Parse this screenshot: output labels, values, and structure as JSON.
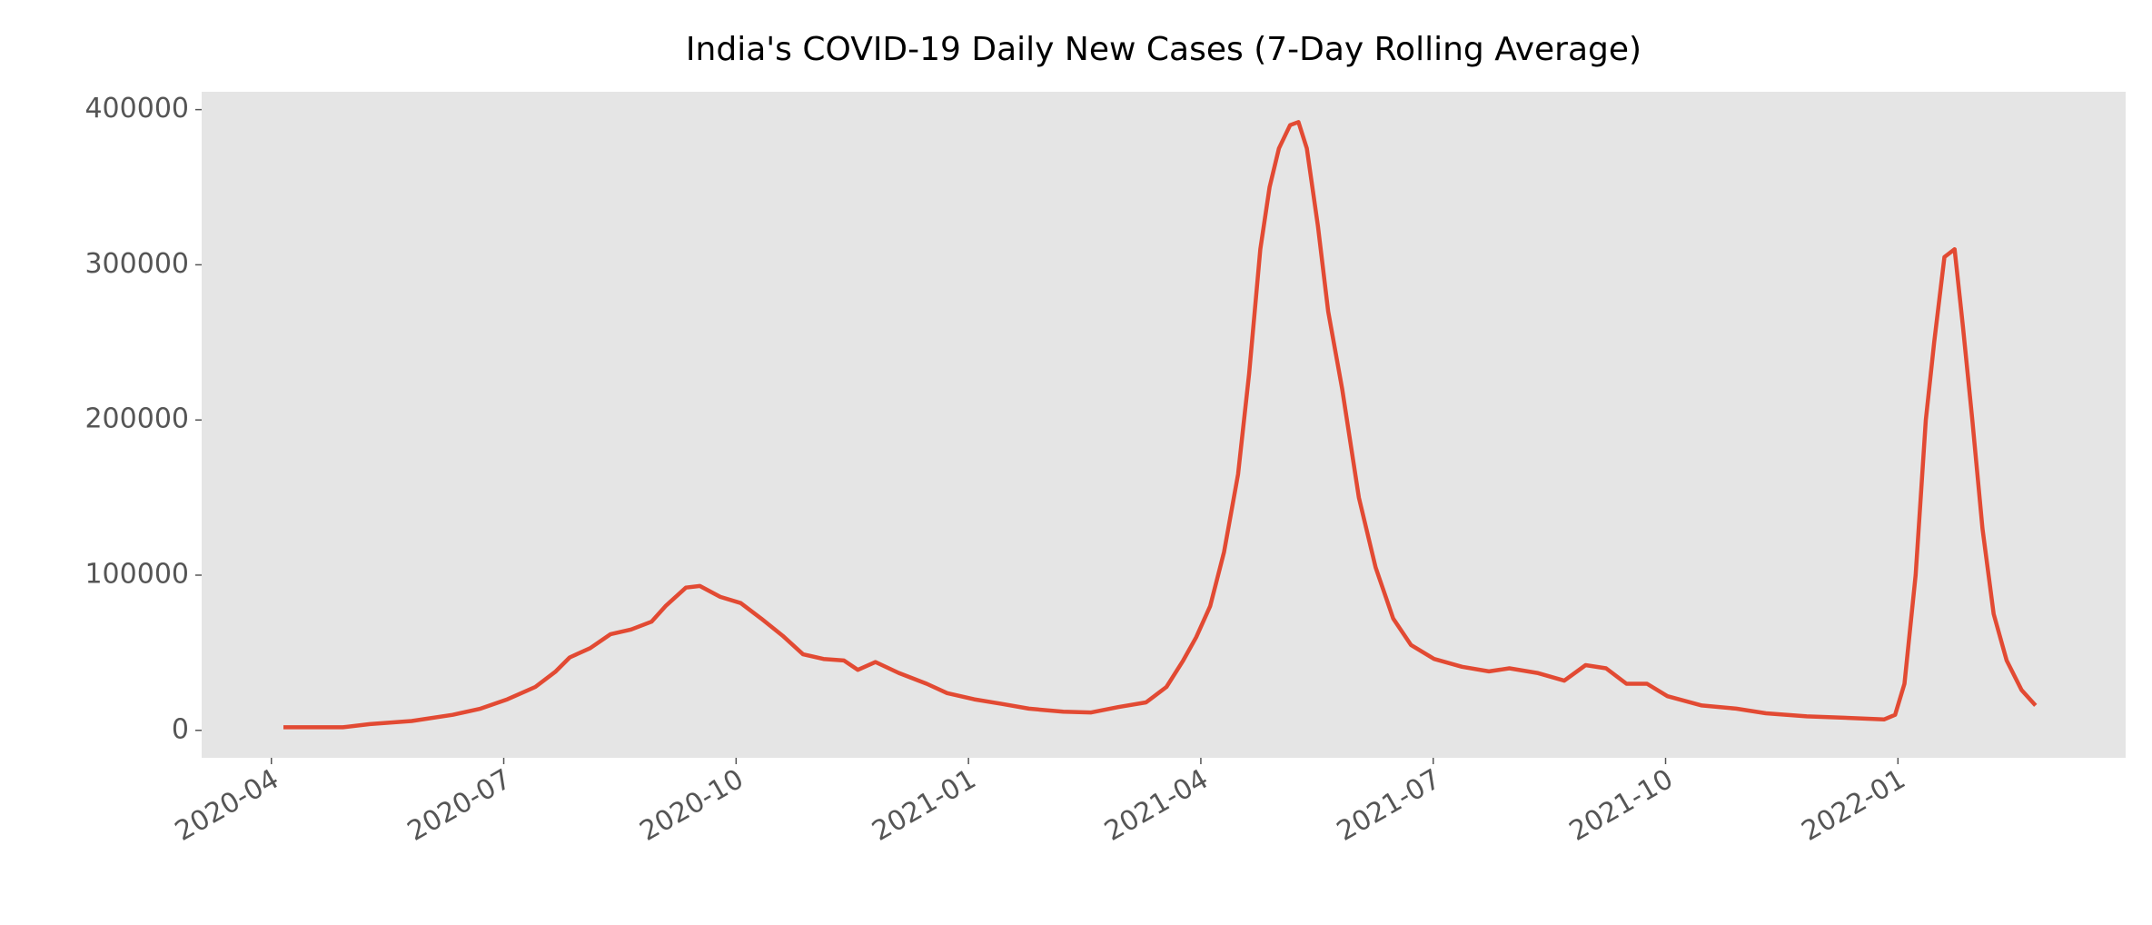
{
  "chart_data": {
    "type": "line",
    "title": "India's COVID-19 Daily New Cases (7-Day Rolling Average)",
    "x": [
      2020.263,
      2020.327,
      2020.356,
      2020.401,
      2020.445,
      2020.475,
      2020.504,
      2020.534,
      2020.556,
      2020.571,
      2020.593,
      2020.615,
      2020.637,
      2020.659,
      2020.674,
      2020.696,
      2020.711,
      2020.733,
      2020.755,
      2020.777,
      2020.8,
      2020.822,
      2020.844,
      2020.866,
      2020.881,
      2020.9,
      2020.925,
      2020.955,
      2020.977,
      2021.006,
      2021.036,
      2021.065,
      2021.102,
      2021.132,
      2021.161,
      2021.191,
      2021.213,
      2021.231,
      2021.245,
      2021.26,
      2021.275,
      2021.29,
      2021.302,
      2021.314,
      2021.324,
      2021.334,
      2021.346,
      2021.355,
      2021.364,
      2021.376,
      2021.387,
      2021.402,
      2021.42,
      2021.438,
      2021.457,
      2021.476,
      2021.501,
      2021.531,
      2021.56,
      2021.582,
      2021.612,
      2021.641,
      2021.664,
      2021.686,
      2021.708,
      2021.73,
      2021.752,
      2021.789,
      2021.826,
      2021.858,
      2021.902,
      2021.947,
      2021.985,
      2021.997,
      2022.007,
      2022.019,
      2022.03,
      2022.039,
      2022.05,
      2022.061,
      2022.07,
      2022.08,
      2022.091,
      2022.103,
      2022.117,
      2022.133,
      2022.148
    ],
    "series": [
      {
        "color": "#e24a33",
        "values": [
          2000,
          2000,
          4000,
          6000,
          10000,
          14000,
          20000,
          28000,
          38000,
          47000,
          53000,
          62000,
          65000,
          70000,
          80000,
          92000,
          93000,
          86000,
          82000,
          72000,
          61000,
          49000,
          46000,
          45000,
          39000,
          44000,
          37000,
          30000,
          24000,
          20000,
          17000,
          14000,
          12000,
          11500,
          15000,
          18000,
          28000,
          45000,
          60000,
          80000,
          115000,
          165000,
          230000,
          310000,
          350000,
          375000,
          390000,
          392000,
          375000,
          325000,
          270000,
          220000,
          150000,
          105000,
          72000,
          55000,
          46000,
          41000,
          38000,
          40000,
          37000,
          32000,
          42000,
          40000,
          30000,
          30000,
          22000,
          16000,
          14000,
          11000,
          9000,
          8000,
          7000,
          10000,
          30000,
          100000,
          200000,
          250000,
          305000,
          310000,
          260000,
          200000,
          130000,
          75000,
          45000,
          26000,
          16000
        ]
      }
    ],
    "xlim": [
      2020.175,
      2022.245
    ],
    "xticks": [
      {
        "value": 2020.25,
        "label": "2020-04"
      },
      {
        "value": 2020.5,
        "label": "2020-07"
      },
      {
        "value": 2020.75,
        "label": "2020-10"
      },
      {
        "value": 2021.0,
        "label": "2021-01"
      },
      {
        "value": 2021.25,
        "label": "2021-04"
      },
      {
        "value": 2021.5,
        "label": "2021-07"
      },
      {
        "value": 2021.75,
        "label": "2021-10"
      },
      {
        "value": 2022.0,
        "label": "2022-01"
      }
    ],
    "ylim": [
      -17700,
      411500
    ],
    "yticks": [
      0,
      100000,
      200000,
      300000,
      400000
    ],
    "grid": false
  }
}
